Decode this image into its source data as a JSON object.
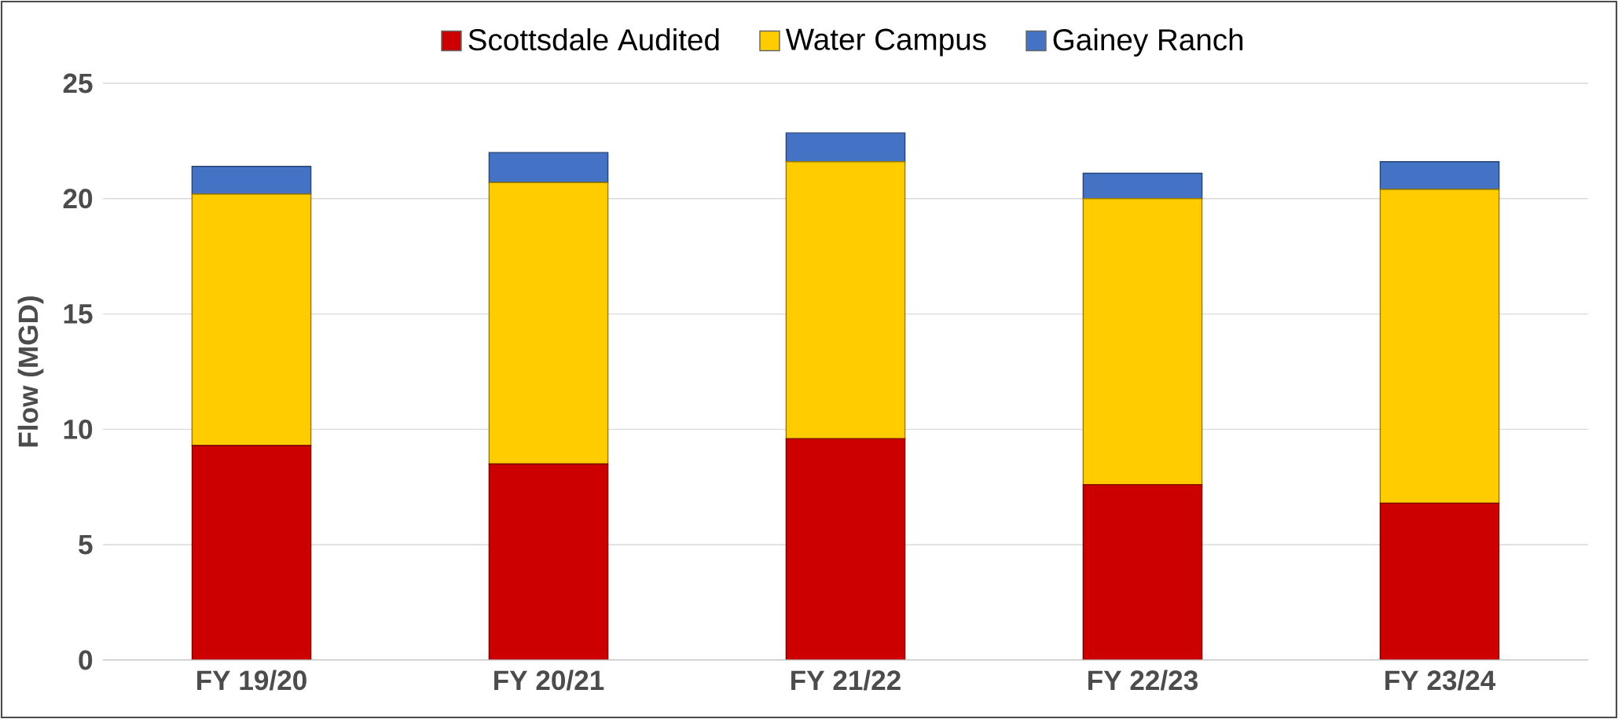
{
  "chart_data": {
    "type": "bar",
    "stacked": true,
    "ylabel": "Flow (MGD)",
    "categories": [
      "FY 19/20",
      "FY 20/21",
      "FY 21/22",
      "FY 22/23",
      "FY 23/24"
    ],
    "series": [
      {
        "name": "Scottsdale Audited",
        "color": "#cc0000",
        "values": [
          9.3,
          8.5,
          9.6,
          7.6,
          6.8
        ]
      },
      {
        "name": "Water Campus",
        "color": "#ffcc00",
        "values": [
          10.9,
          12.2,
          12.0,
          12.4,
          13.6
        ]
      },
      {
        "name": "Gainey Ranch",
        "color": "#4472c4",
        "values": [
          1.2,
          1.3,
          1.25,
          1.1,
          1.2
        ]
      }
    ],
    "ylim": [
      0,
      25
    ],
    "yticks": [
      0,
      5,
      10,
      15,
      20,
      25
    ],
    "grid": "y",
    "legend": "top"
  }
}
